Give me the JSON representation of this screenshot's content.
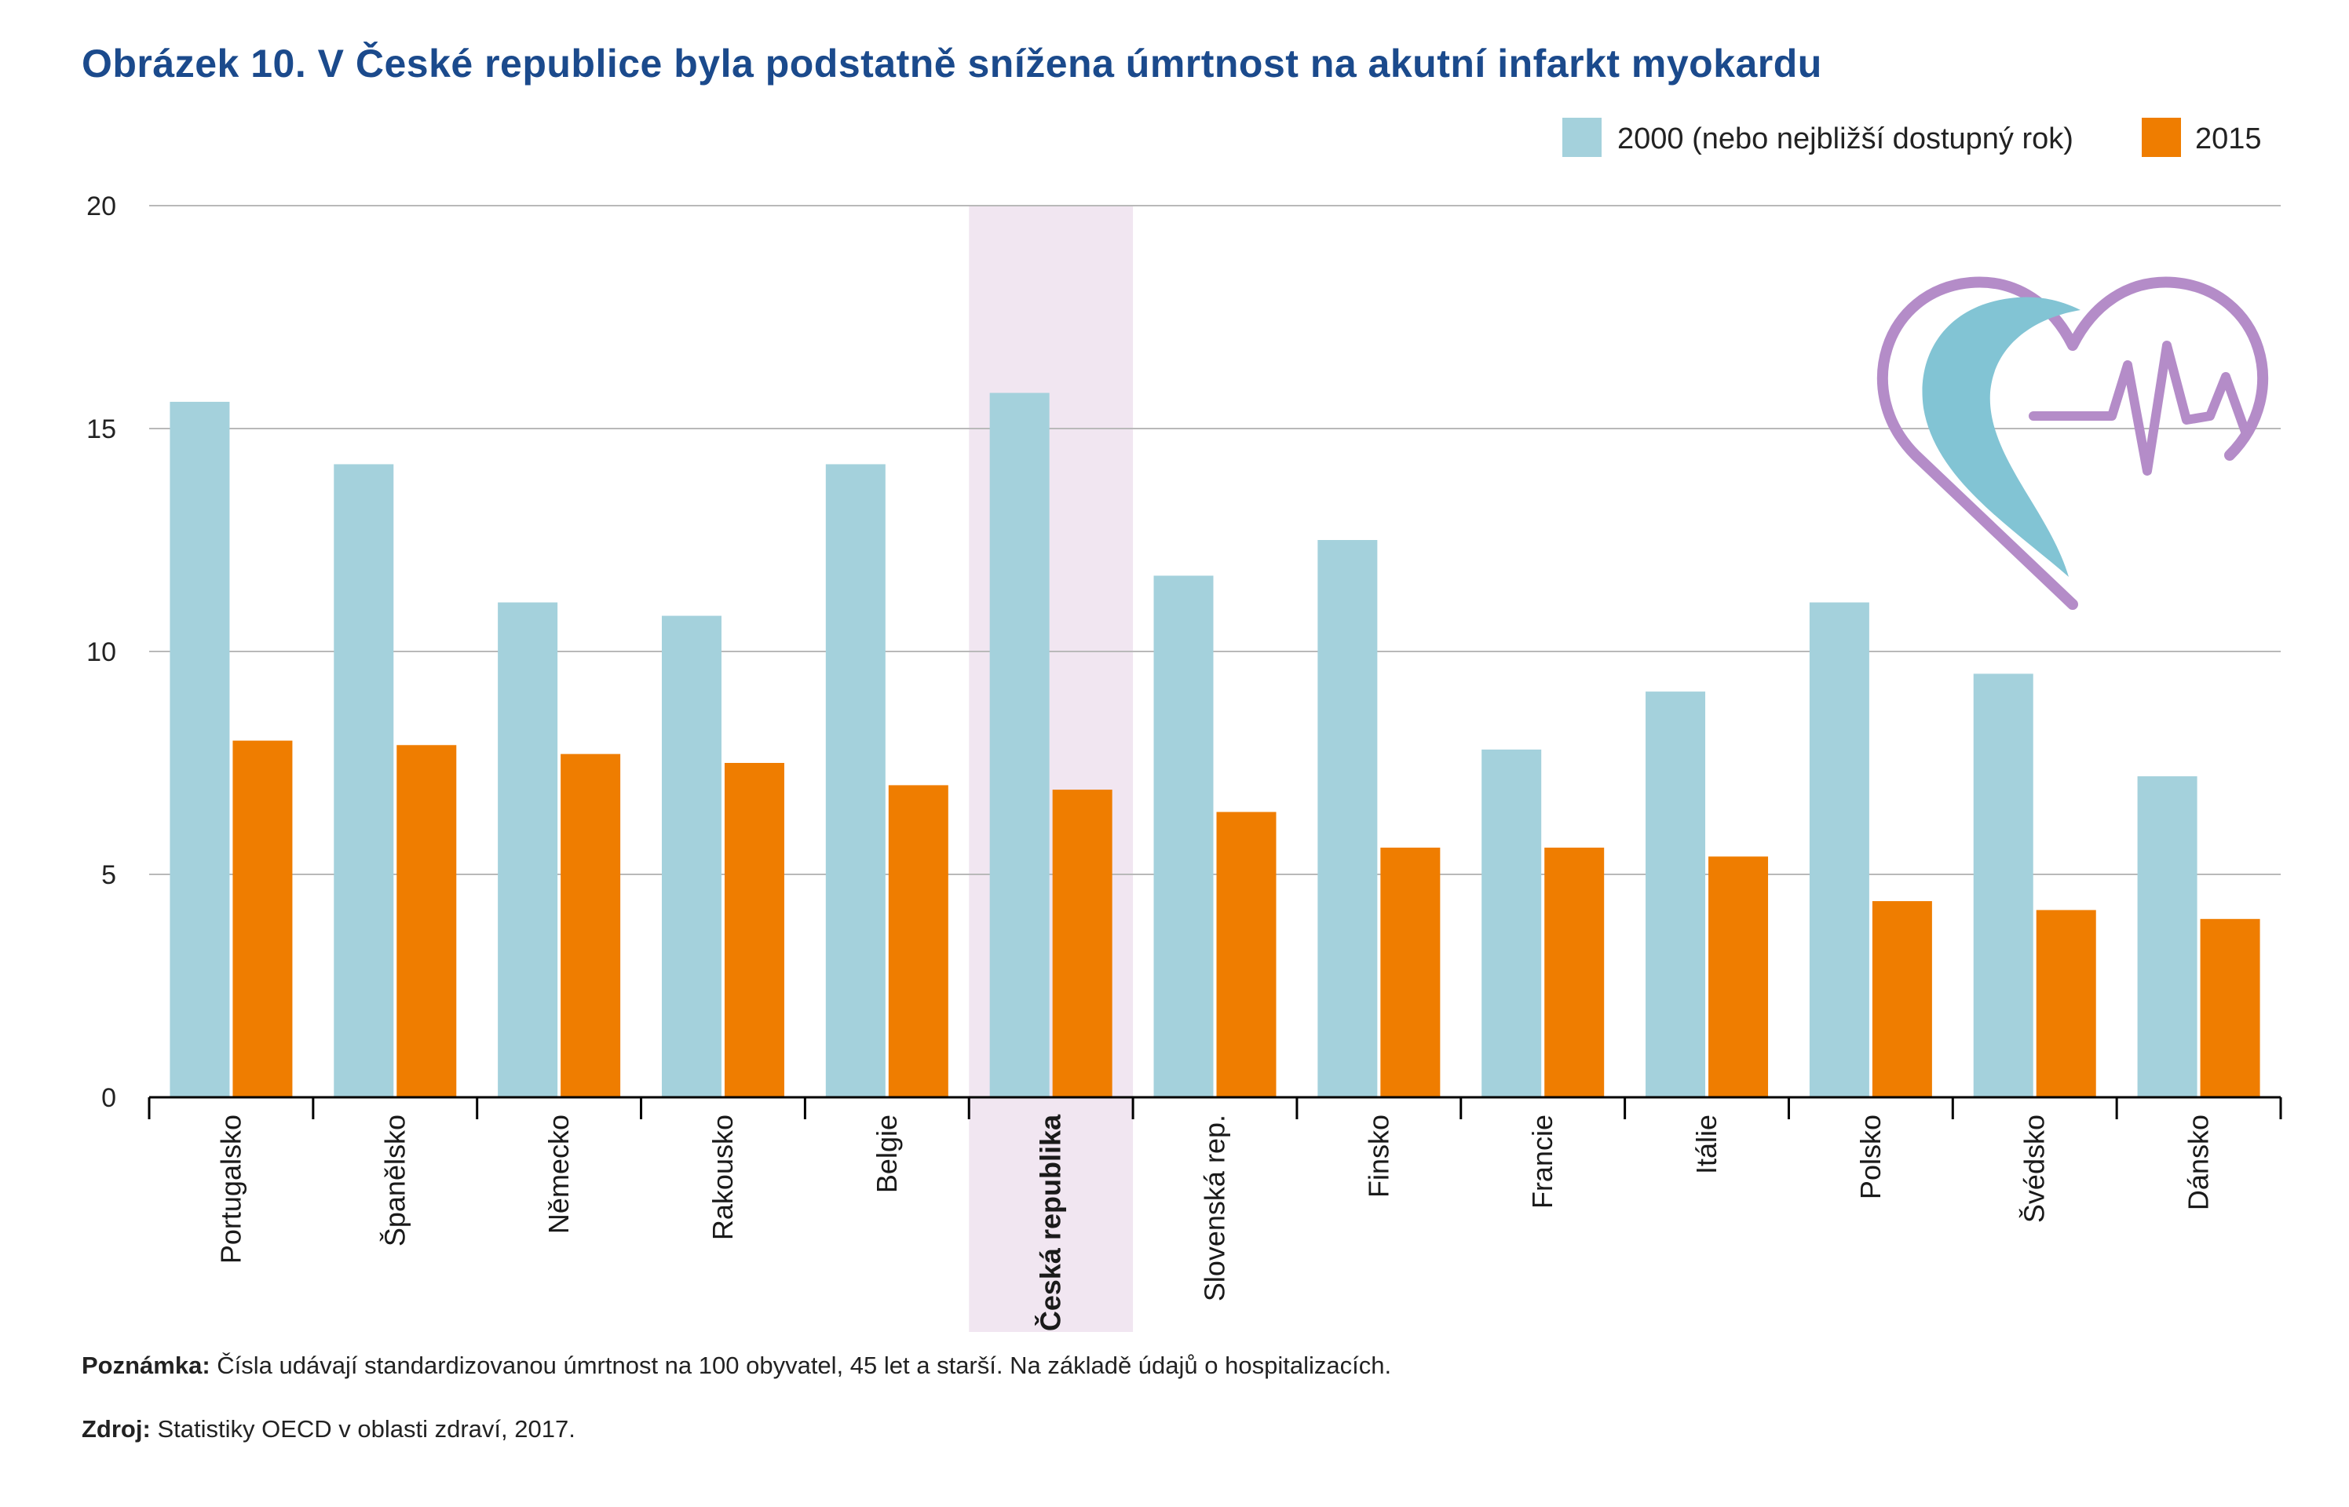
{
  "title": "Obrázek 10. V České republice byla podstatně snížena úmrtnost na akutní infarkt myokardu",
  "colors": {
    "series_2000": "#a4d1dc",
    "series_2015": "#ef7d00",
    "highlight": "#f1e6f1",
    "title": "#1b4a8c",
    "heart_outline": "#b48cc8",
    "heart_fill": "#82c4d4"
  },
  "icons": [
    "heart-pulse-icon"
  ],
  "chart_data": {
    "type": "bar",
    "categories": [
      "Portugalsko",
      "Španělsko",
      "Německo",
      "Rakousko",
      "Belgie",
      "Česká republika",
      "Slovenská rep.",
      "Finsko",
      "Francie",
      "Itálie",
      "Polsko",
      "Švédsko",
      "Dánsko"
    ],
    "highlight_category": "Česká republika",
    "series": [
      {
        "name": "2000 (nebo nejbližší dostupný rok)",
        "values": [
          15.6,
          14.2,
          11.1,
          10.8,
          14.2,
          15.8,
          11.7,
          12.5,
          7.8,
          9.1,
          11.1,
          9.5,
          7.2
        ]
      },
      {
        "name": "2015",
        "values": [
          8.0,
          7.9,
          7.7,
          7.5,
          7.0,
          6.9,
          6.4,
          5.6,
          5.6,
          5.4,
          4.4,
          4.2,
          4.0
        ]
      }
    ],
    "ylim": [
      0,
      20
    ],
    "yticks": [
      0,
      5,
      10,
      15,
      20
    ],
    "grid": true,
    "legend_position": "top-right",
    "xlabel": "",
    "ylabel": ""
  },
  "footnotes": {
    "note_label": "Poznámka:",
    "note_text": "Čísla udávají standardizovanou úmrtnost na 100 obyvatel, 45 let a starší. Na základě údajů o hospitalizacích.",
    "source_label": "Zdroj:",
    "source_text": "Statistiky OECD v oblasti zdraví, 2017."
  }
}
